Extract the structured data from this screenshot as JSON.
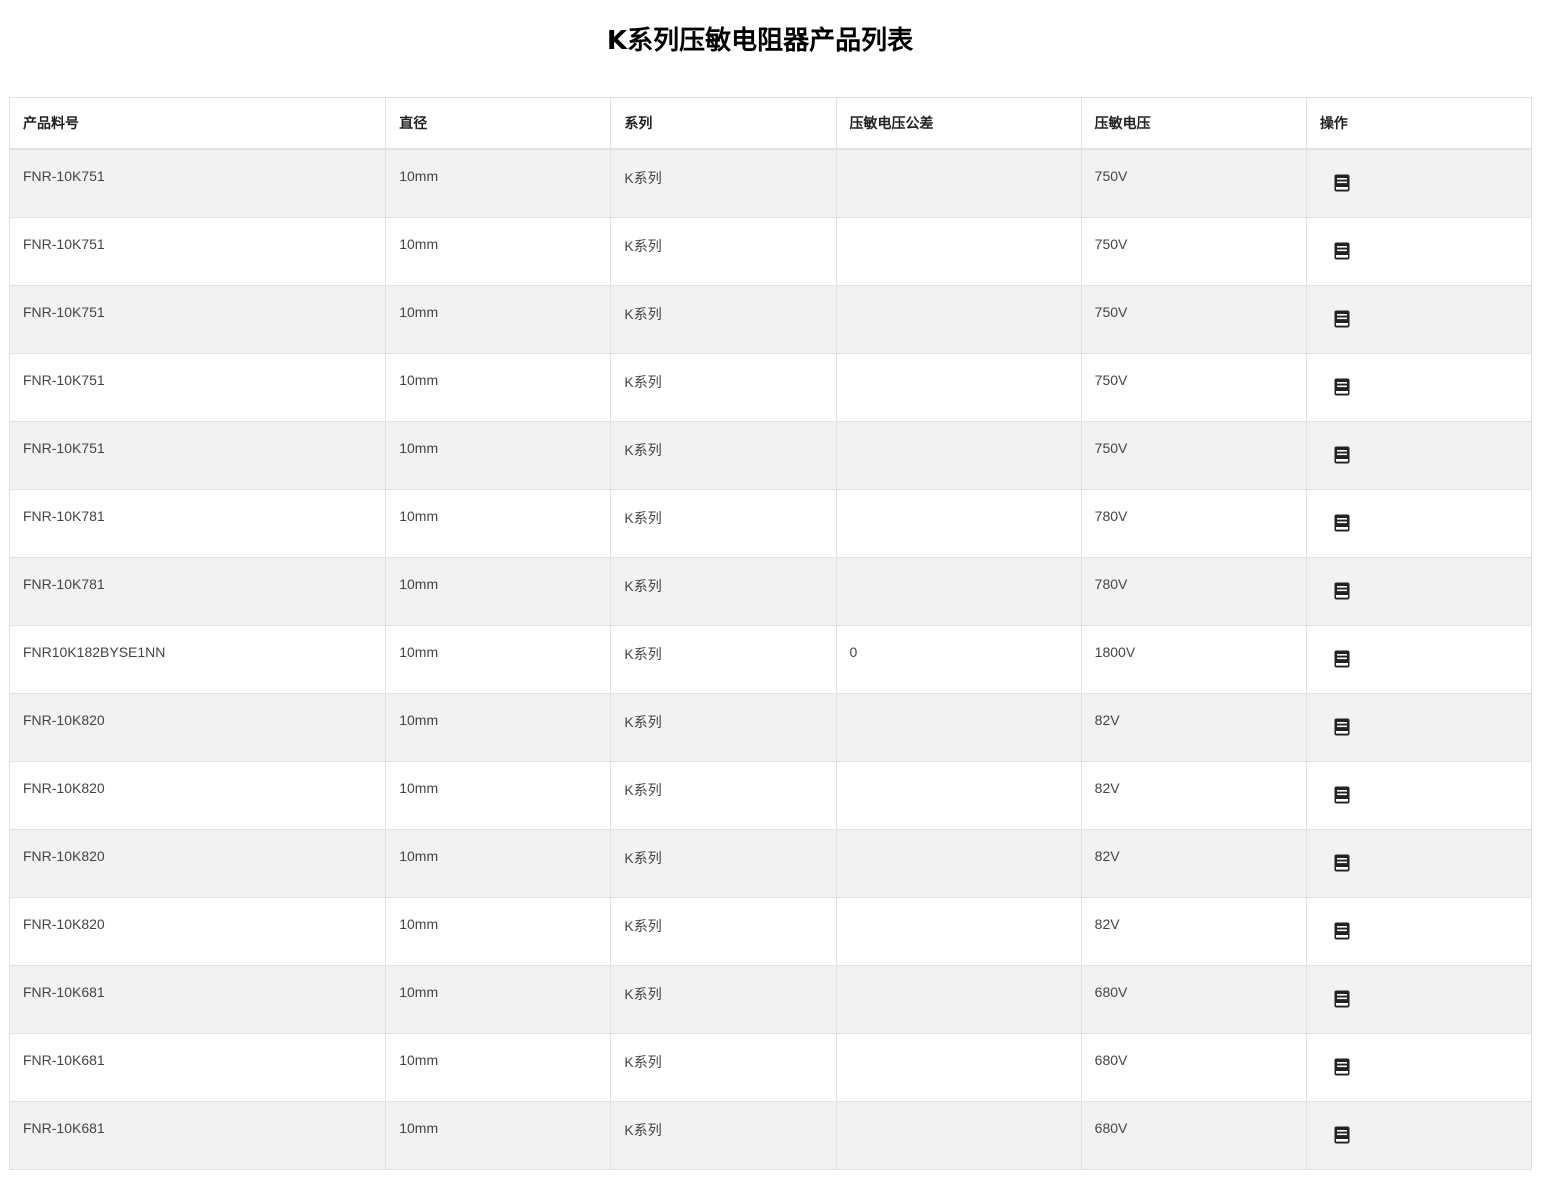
{
  "title": "K系列压敏电阻器产品列表",
  "table": {
    "headers": [
      "产品料号",
      "直径",
      "系列",
      "压敏电压公差",
      "压敏电压",
      "操作"
    ],
    "rows": [
      {
        "part": "FNR-10K751",
        "diameter": "10mm",
        "series": "K系列",
        "tolerance": "",
        "voltage": "750V",
        "action_icon": "book-icon"
      },
      {
        "part": "FNR-10K751",
        "diameter": "10mm",
        "series": "K系列",
        "tolerance": "",
        "voltage": "750V",
        "action_icon": "book-icon"
      },
      {
        "part": "FNR-10K751",
        "diameter": "10mm",
        "series": "K系列",
        "tolerance": "",
        "voltage": "750V",
        "action_icon": "book-icon"
      },
      {
        "part": "FNR-10K751",
        "diameter": "10mm",
        "series": "K系列",
        "tolerance": "",
        "voltage": "750V",
        "action_icon": "book-icon"
      },
      {
        "part": "FNR-10K751",
        "diameter": "10mm",
        "series": "K系列",
        "tolerance": "",
        "voltage": "750V",
        "action_icon": "book-icon"
      },
      {
        "part": "FNR-10K781",
        "diameter": "10mm",
        "series": "K系列",
        "tolerance": "",
        "voltage": "780V",
        "action_icon": "book-icon"
      },
      {
        "part": "FNR-10K781",
        "diameter": "10mm",
        "series": "K系列",
        "tolerance": "",
        "voltage": "780V",
        "action_icon": "book-icon"
      },
      {
        "part": "FNR10K182BYSE1NN",
        "diameter": "10mm",
        "series": "K系列",
        "tolerance": "0",
        "voltage": "1800V",
        "action_icon": "book-icon"
      },
      {
        "part": "FNR-10K820",
        "diameter": "10mm",
        "series": "K系列",
        "tolerance": "",
        "voltage": "82V",
        "action_icon": "book-icon"
      },
      {
        "part": "FNR-10K820",
        "diameter": "10mm",
        "series": "K系列",
        "tolerance": "",
        "voltage": "82V",
        "action_icon": "book-icon"
      },
      {
        "part": "FNR-10K820",
        "diameter": "10mm",
        "series": "K系列",
        "tolerance": "",
        "voltage": "82V",
        "action_icon": "book-icon"
      },
      {
        "part": "FNR-10K820",
        "diameter": "10mm",
        "series": "K系列",
        "tolerance": "",
        "voltage": "82V",
        "action_icon": "book-icon"
      },
      {
        "part": "FNR-10K681",
        "diameter": "10mm",
        "series": "K系列",
        "tolerance": "",
        "voltage": "680V",
        "action_icon": "book-icon"
      },
      {
        "part": "FNR-10K681",
        "diameter": "10mm",
        "series": "K系列",
        "tolerance": "",
        "voltage": "680V",
        "action_icon": "book-icon"
      },
      {
        "part": "FNR-10K681",
        "diameter": "10mm",
        "series": "K系列",
        "tolerance": "",
        "voltage": "680V",
        "action_icon": "book-icon"
      }
    ]
  },
  "colors": {
    "stripe": "#f2f2f2",
    "border": "#e2e2e2",
    "icon": "#222222"
  }
}
